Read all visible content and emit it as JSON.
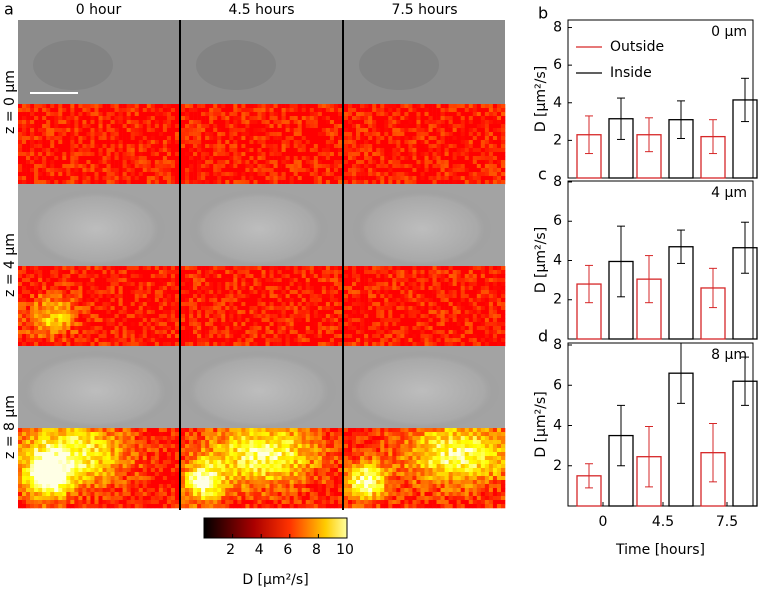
{
  "panel_a": {
    "label": "a",
    "columns": [
      "0 hour",
      "4.5 hours",
      "7.5 hours"
    ],
    "rows": [
      "z = 0 μm",
      "z = 4 μm",
      "z = 8 μm"
    ],
    "colorbar": {
      "lim": [
        0,
        10
      ],
      "ticks": [
        2,
        4,
        6,
        8,
        10
      ],
      "label": "D [μm²/s]"
    }
  },
  "chart_data": [
    {
      "type": "bar",
      "label": "b",
      "annotation": "0 μm",
      "ylabel": "D [μm²/s]",
      "ylim": [
        0,
        8.4
      ],
      "yticks": [
        2,
        4,
        6,
        8
      ],
      "legend": "upper left",
      "series": [
        {
          "name": "Outside",
          "color": "#d62728",
          "values": [
            2.3,
            2.3,
            2.2
          ],
          "errors": [
            1.0,
            0.9,
            0.9
          ]
        },
        {
          "name": "Inside",
          "color": "#000000",
          "values": [
            3.15,
            3.1,
            4.15
          ],
          "errors": [
            1.1,
            1.0,
            1.15
          ]
        }
      ]
    },
    {
      "type": "bar",
      "label": "c",
      "annotation": "4 μm",
      "ylabel": "D [μm²/s]",
      "ylim": [
        0,
        8.05
      ],
      "yticks": [
        2,
        4,
        6,
        8
      ],
      "series": [
        {
          "color": "#d62728",
          "values": [
            2.8,
            3.05,
            2.6
          ],
          "errors": [
            0.95,
            1.2,
            1.0
          ]
        },
        {
          "color": "#000000",
          "values": [
            3.95,
            4.7,
            4.65
          ],
          "errors": [
            1.8,
            0.85,
            1.3
          ]
        }
      ]
    },
    {
      "type": "bar",
      "label": "d",
      "annotation": "8 μm",
      "ylabel": "D [μm²/s]",
      "xlabel": "Time [hours]",
      "categories": [
        "0",
        "4.5",
        "7.5"
      ],
      "ylim": [
        0,
        8.1
      ],
      "yticks": [
        2,
        4,
        6,
        8
      ],
      "series": [
        {
          "color": "#d62728",
          "values": [
            1.5,
            2.45,
            2.65
          ],
          "errors": [
            0.6,
            1.5,
            1.45
          ]
        },
        {
          "color": "#000000",
          "values": [
            3.5,
            6.6,
            6.2
          ],
          "errors": [
            1.5,
            1.5,
            1.2
          ]
        }
      ]
    }
  ]
}
